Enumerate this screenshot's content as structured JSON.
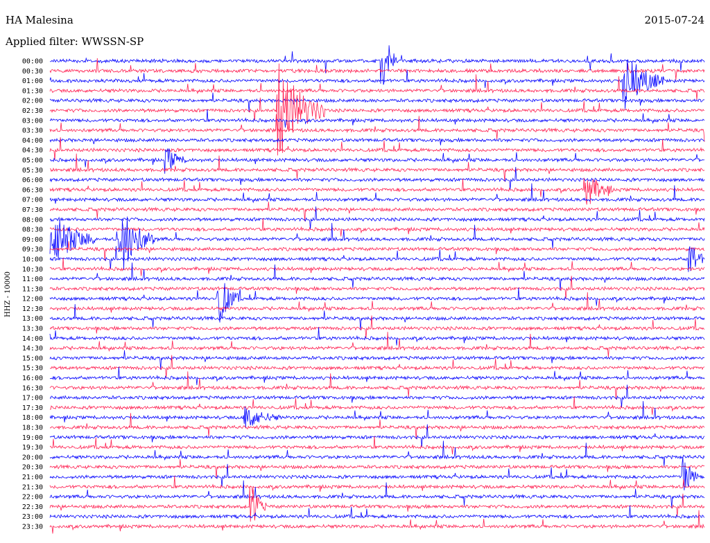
{
  "header": {
    "station": "HA Malesina",
    "filter": "Applied filter: WWSSN-SP",
    "date": "2015-07-24"
  },
  "chart_data": {
    "type": "line",
    "subtype": "helicorder",
    "title": "HA Malesina",
    "subtitle": "Applied filter: WWSSN-SP",
    "date": "2015-07-24",
    "ylabel": "HHZ - 10000",
    "row_labels": [
      "00:00",
      "00:30",
      "01:00",
      "01:30",
      "02:00",
      "02:30",
      "03:00",
      "03:30",
      "04:00",
      "04:30",
      "05:00",
      "05:30",
      "06:00",
      "06:30",
      "07:00",
      "07:30",
      "08:00",
      "08:30",
      "09:00",
      "09:30",
      "10:00",
      "10:30",
      "11:00",
      "11:30",
      "12:00",
      "12:30",
      "13:00",
      "13:30",
      "14:00",
      "14:30",
      "15:00",
      "15:30",
      "16:00",
      "16:30",
      "17:00",
      "17:30",
      "18:00",
      "18:30",
      "19:00",
      "19:30",
      "20:00",
      "20:30",
      "21:00",
      "21:30",
      "22:00",
      "22:30",
      "23:00",
      "23:30"
    ],
    "colors": [
      "#0000ff",
      "#ff1e50"
    ],
    "events": [
      {
        "row": 0,
        "x": 0.51,
        "amp": 3.5,
        "len": 0.02
      },
      {
        "row": 2,
        "x": 0.88,
        "amp": 2.8,
        "len": 0.06
      },
      {
        "row": 5,
        "x": 0.35,
        "amp": 5.0,
        "len": 0.07
      },
      {
        "row": 10,
        "x": 0.18,
        "amp": 1.2,
        "len": 0.03
      },
      {
        "row": 13,
        "x": 0.82,
        "amp": 1.8,
        "len": 0.04
      },
      {
        "row": 18,
        "x": 0.0,
        "amp": 3.0,
        "len": 0.07
      },
      {
        "row": 18,
        "x": 0.11,
        "amp": 3.5,
        "len": 0.05
      },
      {
        "row": 20,
        "x": 0.98,
        "amp": 2.0,
        "len": 0.02
      },
      {
        "row": 24,
        "x": 0.26,
        "amp": 2.5,
        "len": 0.03
      },
      {
        "row": 36,
        "x": 0.3,
        "amp": 1.2,
        "len": 0.05
      },
      {
        "row": 42,
        "x": 0.97,
        "amp": 2.5,
        "len": 0.02
      },
      {
        "row": 45,
        "x": 0.31,
        "amp": 2.0,
        "len": 0.02
      }
    ]
  }
}
